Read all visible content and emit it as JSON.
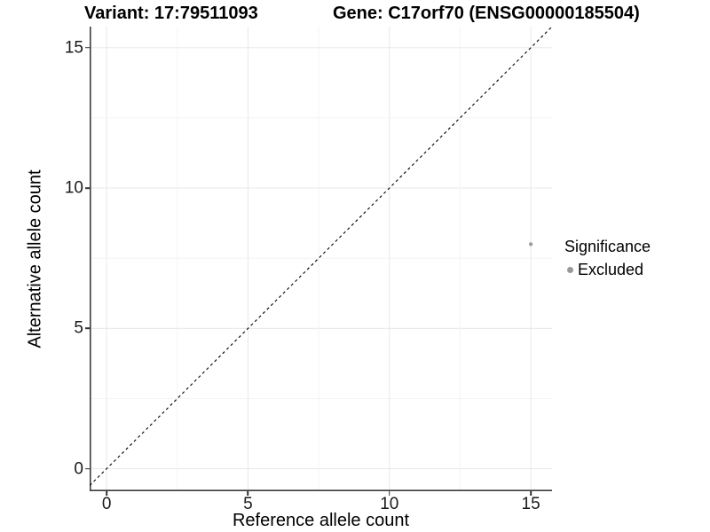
{
  "chart_data": {
    "type": "scatter",
    "title_left": "Variant: 17:79511093",
    "title_right": "Gene: C17orf70 (ENSG00000185504)",
    "xlabel": "Reference allele count",
    "ylabel": "Alternative allele count",
    "xticks": [
      0,
      5,
      10,
      15
    ],
    "yticks": [
      0,
      5,
      10,
      15
    ],
    "xlim": [
      -0.6,
      15.75
    ],
    "ylim": [
      -0.8,
      15.75
    ],
    "minor_grid_step": 2.5,
    "grid": "major+minor",
    "identity_line": {
      "equation": "y = x",
      "style": "dashed",
      "color": "#000000"
    },
    "series": [
      {
        "name": "Excluded",
        "color": "#999999",
        "points": [
          [
            15,
            8
          ]
        ]
      }
    ],
    "legend": {
      "title": "Significance",
      "position": "right",
      "entries": [
        {
          "label": "Excluded",
          "color": "#999999"
        }
      ]
    }
  },
  "colors": {
    "background": "#ffffff",
    "axis_line": "#3d3d3d",
    "tick_mark": "#333333",
    "tick_label": "#1a1a1a",
    "grid_major": "#e8e8e8",
    "grid_minor": "#f4f4f4"
  }
}
